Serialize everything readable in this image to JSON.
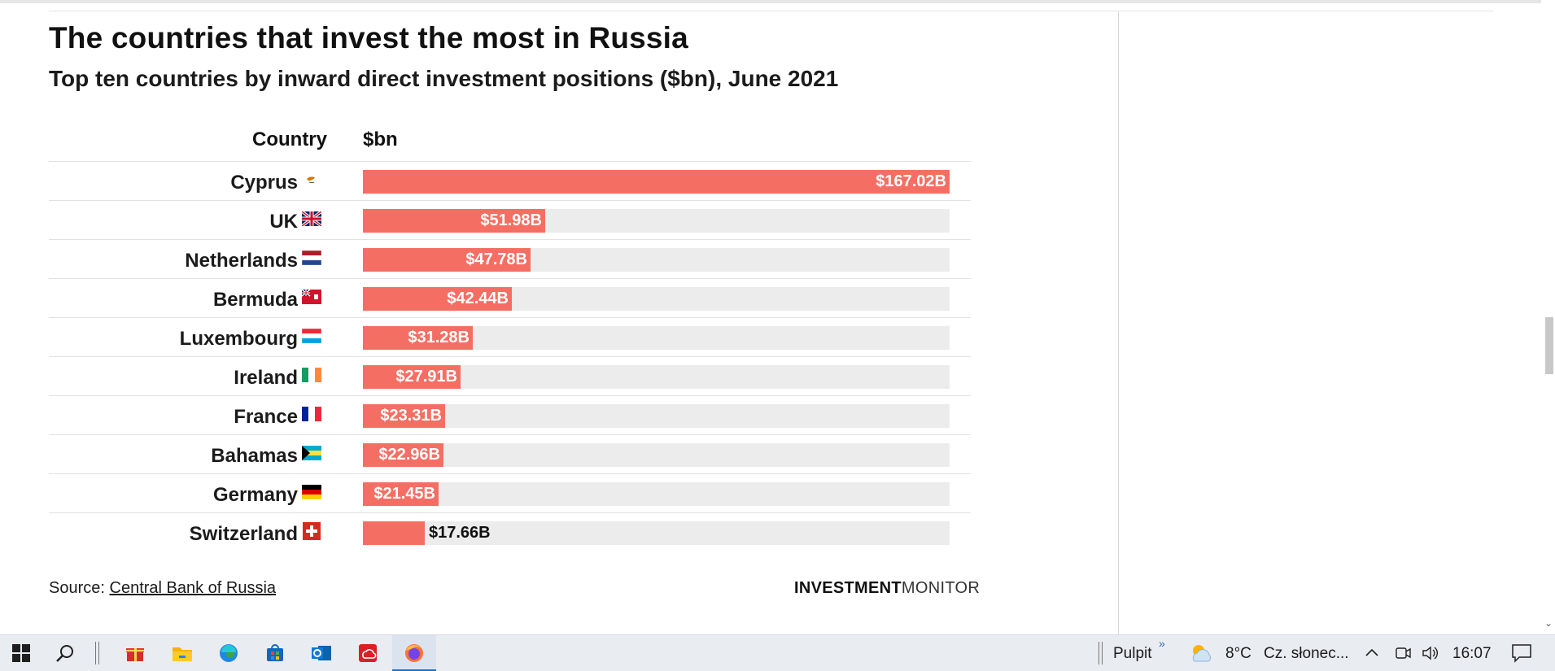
{
  "chart_data": {
    "type": "bar",
    "orientation": "horizontal",
    "title": "The countries that invest the most in Russia",
    "subtitle": "Top ten countries by inward direct investment positions ($bn), June 2021",
    "xlabel": "$bn",
    "ylabel": "Country",
    "categories": [
      "Cyprus",
      "UK",
      "Netherlands",
      "Bermuda",
      "Luxembourg",
      "Ireland",
      "France",
      "Bahamas",
      "Germany",
      "Switzerland"
    ],
    "values": [
      167.02,
      51.98,
      47.78,
      42.44,
      31.28,
      27.91,
      23.31,
      22.96,
      21.45,
      17.66
    ],
    "value_labels": [
      "$167.02B",
      "$51.98B",
      "$47.78B",
      "$42.44B",
      "$31.28B",
      "$27.91B",
      "$23.31B",
      "$22.96B",
      "$21.45B",
      "$17.66B"
    ],
    "xlim": [
      0,
      167.02
    ],
    "bar_color": "#f56e63",
    "track_color": "#ececec"
  },
  "header": {
    "country_col": "Country",
    "value_col": "$bn"
  },
  "footer": {
    "source_prefix": "Source:",
    "source_link": "Central Bank of Russia",
    "brand_bold": "INVESTMENT",
    "brand_light": "MONITOR"
  },
  "taskbar": {
    "pulpit": "Pulpit",
    "weather_temp": "8°C",
    "weather_text": "Cz. słonec...",
    "time": "16:07"
  }
}
